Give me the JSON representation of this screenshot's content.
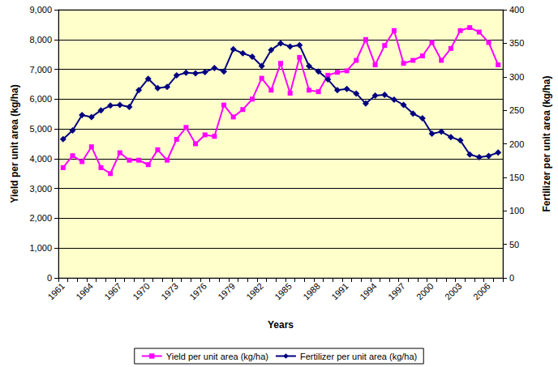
{
  "chart_data": {
    "type": "line",
    "x_label": "Years",
    "y_label": "Yield per unit area (kg/ha)",
    "y2_label": "Fertilizer per unit area (kg/ha)",
    "categories": [
      "1961",
      null,
      null,
      "1964",
      null,
      null,
      "1967",
      null,
      null,
      "1970",
      null,
      null,
      "1973",
      null,
      null,
      "1976",
      null,
      null,
      "1979",
      null,
      null,
      "1982",
      null,
      null,
      "1985",
      null,
      null,
      "1988",
      null,
      null,
      "1991",
      null,
      null,
      "1994",
      null,
      null,
      "1997",
      null,
      null,
      "2000",
      null,
      null,
      "2003",
      null,
      null,
      "2006",
      null
    ],
    "series": [
      {
        "name": "Yield per unit area (kg/ha)",
        "color": "#ff00ff",
        "marker": "square",
        "values": [
          3700,
          4100,
          3900,
          4400,
          3700,
          3500,
          4200,
          3950,
          3950,
          3800,
          4300,
          3950,
          4650,
          5050,
          4500,
          4800,
          4750,
          5800,
          5400,
          5650,
          6000,
          6700,
          6300,
          7200,
          6200,
          7400,
          6300,
          6250,
          6800,
          6900,
          6950,
          7300,
          8000,
          7150,
          7800,
          8300,
          7200,
          7300,
          7450,
          7900,
          7300,
          7700,
          8300,
          8400,
          8250,
          7900,
          7150
        ]
      },
      {
        "name": "Fertilizer per unit area (kg/ha)",
        "color": "#000080",
        "marker": "diamond",
        "axis": "y2",
        "values": [
          207,
          220,
          243,
          240,
          250,
          257,
          258,
          255,
          280,
          297,
          283,
          285,
          302,
          306,
          305,
          307,
          313,
          308,
          341,
          335,
          330,
          316,
          340,
          350,
          345,
          347,
          316,
          308,
          296,
          280,
          282,
          275,
          260,
          272,
          273,
          266,
          258,
          245,
          238,
          215,
          218,
          210,
          205,
          184,
          180,
          182,
          187
        ]
      }
    ],
    "ylim": [
      0,
      9000
    ],
    "yticks": [
      0,
      1000,
      2000,
      3000,
      4000,
      5000,
      6000,
      7000,
      8000,
      9000
    ],
    "y2lim": [
      0,
      400
    ],
    "y2ticks": [
      0,
      50,
      100,
      150,
      200,
      250,
      300,
      350,
      400
    ],
    "grid": true,
    "legend": "bottom"
  }
}
